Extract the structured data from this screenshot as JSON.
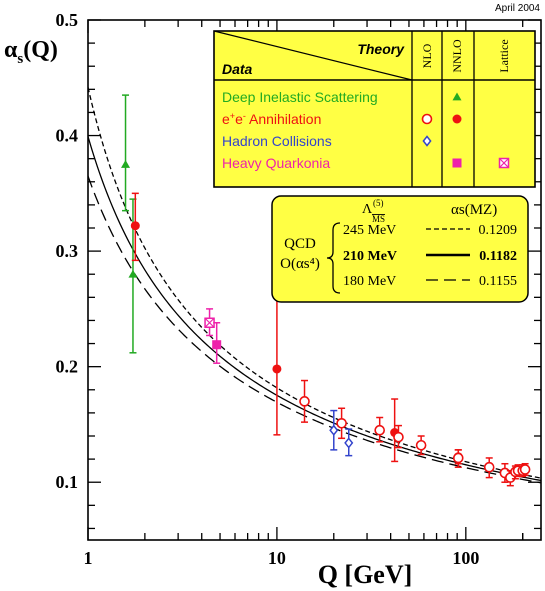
{
  "chart_data": {
    "type": "scatter",
    "date_label": "April 2004",
    "xlabel": "Q [GeV]",
    "ylabel": "αs(Q)",
    "xscale": "log",
    "xlim": [
      1,
      250
    ],
    "ylim": [
      0.05,
      0.5
    ],
    "x_ticks": [
      {
        "v": 1,
        "t": "1"
      },
      {
        "v": 10,
        "t": "10"
      },
      {
        "v": 100,
        "t": "100"
      }
    ],
    "y_ticks": [
      {
        "v": 0.1,
        "t": "0.1"
      },
      {
        "v": 0.2,
        "t": "0.2"
      },
      {
        "v": 0.3,
        "t": "0.3"
      },
      {
        "v": 0.4,
        "t": "0.4"
      },
      {
        "v": 0.5,
        "t": "0.5"
      }
    ],
    "legend": {
      "theory_header": "Theory",
      "data_header": "Data",
      "columns": [
        "NLO",
        "NNLO",
        "Lattice"
      ],
      "rows": [
        {
          "label": "Deep Inelastic Scattering",
          "color": "#22aa22",
          "nnlo": "triangle"
        },
        {
          "label_main": "e",
          "label_sup": "+",
          "label_mid": "e",
          "label_sup2": "-",
          "label_tail": " Annihilation",
          "color": "#ee1111",
          "nlo": "open-circle",
          "nnlo": "circle"
        },
        {
          "label": "Hadron Collisions",
          "color": "#3344cc",
          "nlo": "open-diamond"
        },
        {
          "label": "Heavy Quarkonia",
          "color": "#ee22aa",
          "nnlo": "square",
          "lattice": "crossed-square"
        }
      ]
    },
    "qcd_box": {
      "lambda_header": "Λ",
      "lambda_sup": "(5)",
      "lambda_sub": "MS",
      "alpha_header": "αs(MZ)",
      "qcd_label": "QCD",
      "order_label": "O(αs⁴)",
      "rows": [
        {
          "lambda": "245 MeV",
          "alpha": "0.1209",
          "style": "short-dash"
        },
        {
          "lambda": "210 MeV",
          "alpha": "0.1182",
          "style": "solid"
        },
        {
          "lambda": "180 MeV",
          "alpha": "0.1155",
          "style": "long-dash"
        }
      ]
    },
    "curves": [
      {
        "lambda_gev": 0.245,
        "style": "short-dash"
      },
      {
        "lambda_gev": 0.21,
        "style": "solid"
      },
      {
        "lambda_gev": 0.18,
        "style": "long-dash"
      }
    ],
    "series": [
      {
        "name": "Deep Inelastic Scattering",
        "color": "#22aa22",
        "marker": "triangle",
        "points": [
          {
            "x": 1.58,
            "y": 0.375,
            "lo": 0.335,
            "hi": 0.435
          },
          {
            "x": 1.73,
            "y": 0.28,
            "lo": 0.212,
            "hi": 0.345
          }
        ]
      },
      {
        "name": "e+e- Annihilation (NNLO)",
        "color": "#ee1111",
        "marker": "circle",
        "points": [
          {
            "x": 1.78,
            "y": 0.322,
            "lo": 0.292,
            "hi": 0.35
          },
          {
            "x": 10.0,
            "y": 0.198,
            "lo": 0.141,
            "hi": 0.26
          },
          {
            "x": 42.0,
            "y": 0.143,
            "lo": 0.118,
            "hi": 0.172
          },
          {
            "x": 91.2,
            "y": 0.122,
            "lo": 0.116,
            "hi": 0.128
          }
        ]
      },
      {
        "name": "e+e- Annihilation (NLO)",
        "color": "#ee1111",
        "marker": "open-circle",
        "points": [
          {
            "x": 14.0,
            "y": 0.17,
            "lo": 0.152,
            "hi": 0.188
          },
          {
            "x": 22.0,
            "y": 0.151,
            "lo": 0.138,
            "hi": 0.164
          },
          {
            "x": 35.0,
            "y": 0.145,
            "lo": 0.135,
            "hi": 0.156
          },
          {
            "x": 44.0,
            "y": 0.139,
            "lo": 0.13,
            "hi": 0.149
          },
          {
            "x": 58.0,
            "y": 0.132,
            "lo": 0.124,
            "hi": 0.14
          },
          {
            "x": 91.2,
            "y": 0.121,
            "lo": 0.113,
            "hi": 0.128
          },
          {
            "x": 133.0,
            "y": 0.113,
            "lo": 0.104,
            "hi": 0.121
          },
          {
            "x": 161.0,
            "y": 0.108,
            "lo": 0.1,
            "hi": 0.116
          },
          {
            "x": 172.0,
            "y": 0.104,
            "lo": 0.097,
            "hi": 0.11
          },
          {
            "x": 183.0,
            "y": 0.109,
            "lo": 0.103,
            "hi": 0.114
          },
          {
            "x": 189.0,
            "y": 0.11,
            "lo": 0.105,
            "hi": 0.115
          },
          {
            "x": 200.0,
            "y": 0.11,
            "lo": 0.105,
            "hi": 0.115
          },
          {
            "x": 206.0,
            "y": 0.111,
            "lo": 0.106,
            "hi": 0.116
          }
        ]
      },
      {
        "name": "Hadron Collisions",
        "color": "#3344cc",
        "marker": "open-diamond",
        "points": [
          {
            "x": 20.0,
            "y": 0.145,
            "lo": 0.128,
            "hi": 0.162
          },
          {
            "x": 24.0,
            "y": 0.134,
            "lo": 0.123,
            "hi": 0.146
          }
        ]
      },
      {
        "name": "Heavy Quarkonia (lattice)",
        "color": "#ee22aa",
        "marker": "crossed-square",
        "points": [
          {
            "x": 4.4,
            "y": 0.238,
            "lo": 0.227,
            "hi": 0.25
          }
        ]
      },
      {
        "name": "Heavy Quarkonia (NNLO)",
        "color": "#ee22aa",
        "marker": "square",
        "points": [
          {
            "x": 4.8,
            "y": 0.219,
            "lo": 0.203,
            "hi": 0.238
          }
        ]
      }
    ]
  }
}
